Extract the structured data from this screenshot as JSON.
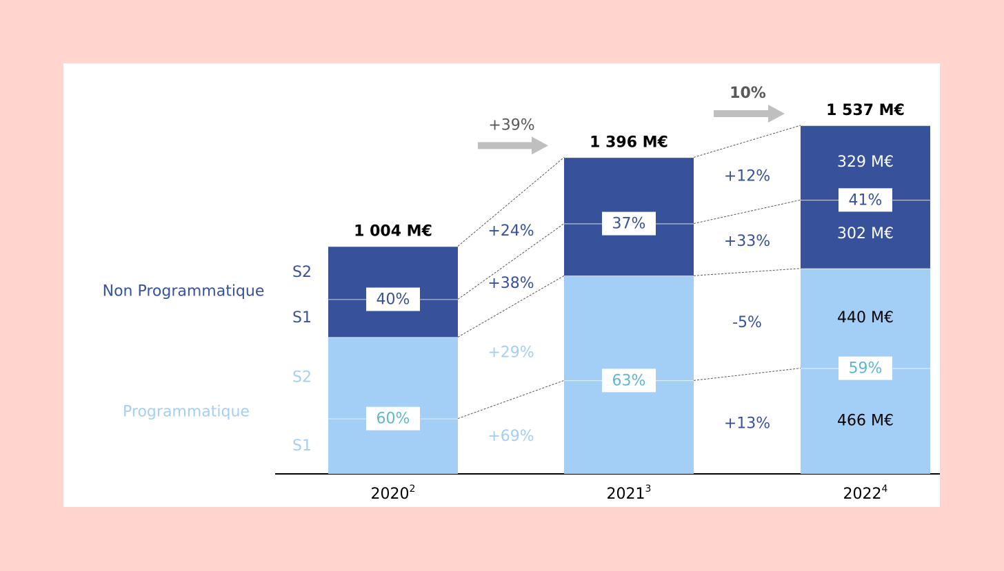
{
  "chart_data": {
    "type": "stacked_bar",
    "categories": [
      "2020",
      "2021",
      "2022"
    ],
    "footnotes": [
      "2",
      "3",
      "4"
    ],
    "groups": [
      {
        "name": "Programmatique",
        "color": "#a3cff7",
        "text_color": "#a3cff7",
        "share_color": "#5fb6d3",
        "shares": [
          60,
          63,
          59
        ],
        "share_labels": [
          "60%",
          "63%",
          "59%"
        ],
        "series": [
          {
            "name": "S1",
            "values": [
              244,
              412,
              466
            ],
            "value_labels": [
              null,
              null,
              "466 M€"
            ],
            "growth": [
              69,
              13
            ],
            "growth_labels": [
              "+69%",
              "+13%"
            ]
          },
          {
            "name": "S2",
            "values": [
              359,
              462,
              440
            ],
            "value_labels": [
              null,
              null,
              "440 M€"
            ],
            "growth": [
              29,
              -5
            ],
            "growth_labels": [
              "+29%",
              "-5%"
            ]
          }
        ]
      },
      {
        "name": "Non Programmatique",
        "color": "#37519b",
        "text_color": "#37519b",
        "share_color": "#37519b",
        "shares": [
          40,
          37,
          41
        ],
        "share_labels": [
          "40%",
          "37%",
          "41%"
        ],
        "series": [
          {
            "name": "S1",
            "values": [
              167,
              230,
              302
            ],
            "value_labels": [
              null,
              null,
              "302 M€"
            ],
            "growth": [
              38,
              33
            ],
            "growth_labels": [
              "+38%",
              "+33%"
            ]
          },
          {
            "name": "S2",
            "values": [
              234,
              292,
              329
            ],
            "value_labels": [
              null,
              null,
              "329 M€"
            ],
            "growth": [
              24,
              12
            ],
            "growth_labels": [
              "+24%",
              "+12%"
            ]
          }
        ]
      }
    ],
    "totals": [
      1004,
      1396,
      1537
    ],
    "total_labels": [
      "1 004 M€",
      "1 396 M€",
      "1 537 M€"
    ],
    "total_growth": [
      39,
      10
    ],
    "total_growth_labels": [
      "+39%",
      "10%"
    ]
  }
}
